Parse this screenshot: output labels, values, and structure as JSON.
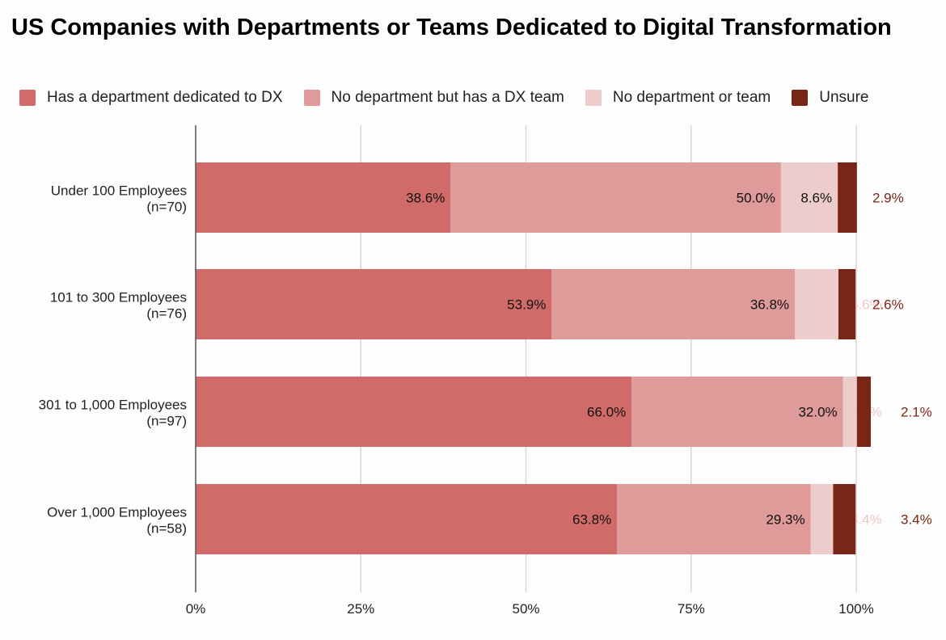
{
  "chart_data": {
    "type": "bar",
    "orientation": "horizontal",
    "stacked": "percent",
    "title": "US Companies with Departments or Teams Dedicated to Digital Transformation",
    "xlabel": "",
    "ylabel": "",
    "xlim": [
      0,
      100
    ],
    "xticks": [
      "0%",
      "25%",
      "50%",
      "75%",
      "100%"
    ],
    "grid": true,
    "legend_position": "top-left",
    "categories": [
      {
        "line1": "Under 100 Employees",
        "line2": "(n=70)"
      },
      {
        "line1": "101 to 300 Employees",
        "line2": "(n=76)"
      },
      {
        "line1": "301 to 1,000 Employees",
        "line2": "(n=97)"
      },
      {
        "line1": "Over 1,000 Employees",
        "line2": "(n=58)"
      }
    ],
    "series": [
      {
        "name": "Has a department dedicated to DX",
        "color": "#d16b69",
        "label_color": "#111111",
        "values": [
          38.6,
          53.9,
          66.0,
          63.8
        ]
      },
      {
        "name": "No department but has a DX team",
        "color": "#df9a9a",
        "label_color": "#111111",
        "values": [
          50.0,
          36.8,
          32.0,
          29.3
        ]
      },
      {
        "name": "No department or team",
        "color": "#edcdcc",
        "label_color": "#111111",
        "outside_label_color": "#f0c8c8",
        "values": [
          8.6,
          6.6,
          2.1,
          3.4
        ]
      },
      {
        "name": "Unsure",
        "color": "#7a2617",
        "label_color": "#7a2617",
        "values": [
          2.9,
          2.6,
          2.1,
          3.4
        ]
      }
    ]
  }
}
